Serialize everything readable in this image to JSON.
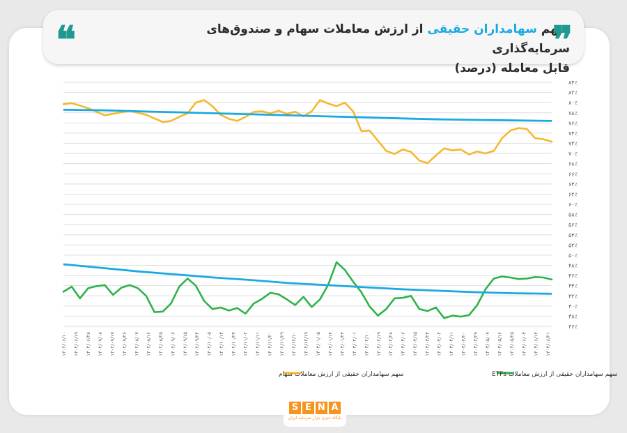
{
  "header": {
    "title_part1": "سهم ",
    "title_highlight1": "سهامداران حقیقی",
    "title_part2": " از ارزش معاملات سهام و صندوق‌های سرمایه‌گذاری",
    "title_line2": "قابل معامله (درصد)",
    "open_quote": "❝",
    "close_quote": "❞",
    "accent_color": "#1ba9e0",
    "quote_color": "#1f9a8f"
  },
  "logo": {
    "letters": [
      "S",
      "E",
      "N",
      "A"
    ],
    "subtitle": "پایگاه خبری بازار سرمایه ایران",
    "color": "#f7941d"
  },
  "chart_data": {
    "type": "line",
    "ylim": [
      36,
      84
    ],
    "y_ticks": [
      "۸۴٪",
      "۸۲٪",
      "۸۰٪",
      "۷۸٪",
      "۷۶٪",
      "۷۴٪",
      "۷۲٪",
      "۷۰٪",
      "۶۸٪",
      "۶۶٪",
      "۶۴٪",
      "۶۲٪",
      "۶۰٪",
      "۵۸٪",
      "۵۶٪",
      "۵۴٪",
      "۵۲٪",
      "۵۰٪",
      "۴۸٪",
      "۴۶٪",
      "۴۴٪",
      "۴۲٪",
      "۴۰٪",
      "۳۸٪",
      "۳۶٪"
    ],
    "y_tick_values": [
      84,
      82,
      80,
      78,
      76,
      74,
      72,
      70,
      68,
      66,
      64,
      62,
      60,
      58,
      56,
      54,
      52,
      50,
      48,
      46,
      44,
      42,
      40,
      38,
      36
    ],
    "x_ticks": [
      "۱۴۰۲/۰۶/۱۰",
      "۱۴۰۲/۰۶/۱۹",
      "۱۴۰۲/۰۶/۲۸",
      "۱۴۰۲/۰۷/۰۸",
      "۱۴۰۲/۰۷/۱۷",
      "۱۴۰۲/۰۷/۲۶",
      "۱۴۰۲/۰۸/۰۷",
      "۱۴۰۲/۰۸/۱۶",
      "۱۴۰۲/۰۸/۲۵",
      "۱۴۰۲/۰۹/۰۶",
      "۱۴۰۲/۰۹/۱۵",
      "۱۴۰۲/۰۹/۲۴",
      "۱۴۰۲/۱۰/۰۵",
      "۱۴۰۲/۱۰/۱۴",
      "۱۴۰۲/۱۰/۲۳",
      "۱۴۰۲/۱۱/۰۲",
      "۱۴۰۲/۱۱/۱۱",
      "۱۴۰۲/۱۱/۲۰",
      "۱۴۰۲/۱۱/۲۹",
      "۱۴۰۲/۱۲/۱۰",
      "۱۴۰۲/۱۲/۱۹",
      "۱۴۰۳/۰۱/۰۵",
      "۱۴۰۳/۰۱/۱۴",
      "۱۴۰۳/۰۱/۲۳",
      "۱۴۰۳/۰۲/۰۱",
      "۱۴۰۳/۰۲/۱۰",
      "۱۴۰۳/۰۲/۱۹",
      "۱۴۰۳/۰۲/۲۸",
      "۱۴۰۳/۰۳/۰۶",
      "۱۴۰۳/۰۳/۱۵",
      "۱۴۰۳/۰۳/۲۴",
      "۱۴۰۳/۰۴/۰۲",
      "۱۴۰۳/۰۴/۱۱",
      "۱۴۰۳/۰۴/۲۰",
      "۱۴۰۳/۰۴/۲۹",
      "۱۴۰۳/۰۵/۰۷",
      "۱۴۰۳/۰۵/۱۶",
      "۱۴۰۳/۰۵/۲۵",
      "۱۴۰۳/۰۶/۰۳",
      "۱۴۰۳/۰۶/۱۲",
      "۱۴۰۳/۰۶/۲۱"
    ],
    "legend": "bottom",
    "series": [
      {
        "name": "سهم سهامداران حقیقی از ارزش معاملات سهام",
        "color": "#f5b82e",
        "values": [
          79.7,
          79.9,
          79.4,
          78.9,
          78.2,
          77.5,
          77.8,
          78.1,
          78.4,
          78.0,
          77.6,
          76.9,
          76.2,
          76.4,
          77.2,
          77.9,
          80.0,
          80.5,
          79.3,
          77.6,
          76.8,
          76.4,
          77.2,
          78.2,
          78.3,
          77.9,
          78.4,
          77.8,
          78.2,
          77.3,
          78.3,
          80.5,
          79.8,
          79.3,
          80.0,
          78.3,
          74.4,
          74.5,
          72.5,
          70.5,
          69.9,
          70.8,
          70.3,
          68.6,
          68.1,
          69.6,
          71.0,
          70.6,
          70.8,
          69.8,
          70.4,
          70.0,
          70.5,
          73.0,
          74.5,
          75.0,
          74.8,
          73.0,
          72.8,
          72.3
        ],
        "trend": [
          78.6,
          78.5,
          78.3,
          78.1,
          77.9,
          77.7,
          77.5,
          77.3,
          77.1,
          76.9,
          76.7,
          76.6,
          76.5,
          76.4
        ]
      },
      {
        "name": "سهم سهامداران حقیقی از ارزش معاملات ETFs",
        "color": "#2db34a",
        "values": [
          42.8,
          43.8,
          41.5,
          43.5,
          43.9,
          44.1,
          42.2,
          43.6,
          44.1,
          43.5,
          42.0,
          38.8,
          38.9,
          40.5,
          43.8,
          45.4,
          44.0,
          41.0,
          39.4,
          39.7,
          39.1,
          39.6,
          38.5,
          40.5,
          41.4,
          42.6,
          42.3,
          41.3,
          40.2,
          41.8,
          39.8,
          41.3,
          44.2,
          48.6,
          47.1,
          44.8,
          42.7,
          39.9,
          38.1,
          39.4,
          41.5,
          41.6,
          42.0,
          39.4,
          39.0,
          39.7,
          37.6,
          38.1,
          37.9,
          38.2,
          40.2,
          43.3,
          45.4,
          45.8,
          45.6,
          45.3,
          45.4,
          45.7,
          45.6,
          45.2
        ],
        "trend": [
          48.2,
          47.5,
          46.8,
          46.2,
          45.6,
          45.1,
          44.5,
          44.1,
          43.7,
          43.3,
          43.0,
          42.7,
          42.5,
          42.4
        ]
      }
    ]
  }
}
